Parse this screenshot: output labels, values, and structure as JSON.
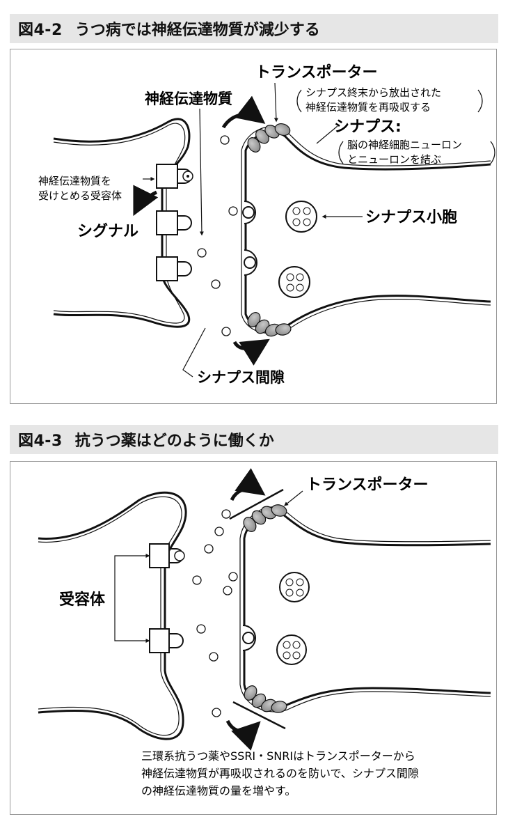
{
  "fig1": {
    "number": "図4-2",
    "title": "うつ病では神経伝達物質が減少する",
    "labels": {
      "transporter": "トランスポーター",
      "transporter_note1": "シナプス終末から放出された",
      "transporter_note2": "神経伝達物質を再吸収する",
      "neurotransmitter": "神経伝達物質",
      "synapse": "シナプス:",
      "synapse_note1": "脳の神経細胞ニューロン",
      "synapse_note2": "とニューロンを結ぶ",
      "receptor1": "神経伝達物質を",
      "receptor2": "受けとめる受容体",
      "signal": "シグナル",
      "vesicle": "シナプス小胞",
      "cleft": "シナプス間隙"
    }
  },
  "fig2": {
    "number": "図4-3",
    "title": "抗うつ薬はどのように働くか",
    "labels": {
      "transporter": "トランスポーター",
      "receptor": "受容体",
      "caption1": "三環系抗うつ薬やSSRI・SNRIはトランスポーターから",
      "caption2": "神経伝達物質が再吸収されるのを防いで、シナプス間隙",
      "caption3": "の神経伝達物質の量を増やす。"
    }
  }
}
